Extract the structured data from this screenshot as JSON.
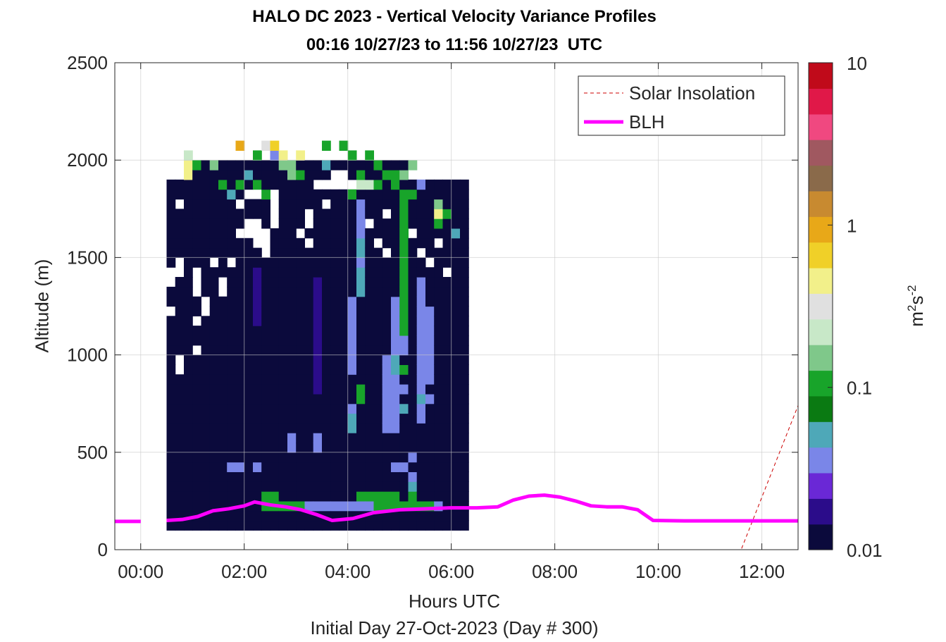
{
  "chart_data": {
    "type": "heatmap",
    "title": "HALO DC 2023 - Vertical Velocity Variance Profiles",
    "subtitle": "00:16 10/27/23 to 11:56 10/27/23  UTC",
    "xlabel": "Hours UTC",
    "footer": "Initial Day 27-Oct-2023 (Day # 300)",
    "ylabel": "Altitude (m)",
    "colorbar_label": "m2s-2",
    "colorbar_label_parts": {
      "base1": "m",
      "sup1": "2",
      "base2": "s",
      "sup2": "-2"
    },
    "colorbar_scale": "log",
    "colorbar_range": [
      0.01,
      10
    ],
    "colorbar_ticks": [
      "0.01",
      "0.1",
      "1",
      "10"
    ],
    "colorbar_colors": [
      "#0b0a3c",
      "#2b0c8a",
      "#6a28d6",
      "#7a86e8",
      "#4ea8b8",
      "#0a7a12",
      "#18a42a",
      "#7fc88a",
      "#c8e8c8",
      "#e0e0e0",
      "#f2f08a",
      "#f0d028",
      "#e8a818",
      "#c88a30",
      "#8a6a4a",
      "#a05860",
      "#f04880",
      "#e01848",
      "#c00a1a"
    ],
    "xlim": [
      -0.5,
      12.7
    ],
    "ylim": [
      0,
      2500
    ],
    "x_ticks": [
      0,
      2,
      4,
      6,
      8,
      10,
      12
    ],
    "x_tick_labels": [
      "00:00",
      "02:00",
      "04:00",
      "06:00",
      "08:00",
      "10:00",
      "12:00"
    ],
    "y_ticks": [
      0,
      500,
      1000,
      1500,
      2000,
      2500
    ],
    "y_tick_labels": [
      "0",
      "500",
      "1000",
      "1500",
      "2000",
      "2500"
    ],
    "grid": true,
    "legend_position": "top-right",
    "legend": [
      {
        "label": "Solar Insolation",
        "color": "#cc0000",
        "style": "dashed"
      },
      {
        "label": "BLH",
        "color": "#ff00ff",
        "style": "solid"
      }
    ],
    "heatmap": {
      "x_start": 0.5,
      "x_step": 0.1667,
      "n_cols": 35,
      "y_start": 100,
      "y_step": 50,
      "n_rows": 40,
      "value_units": "m2s-2",
      "background_value": 0.01,
      "cells": [
        [
          11,
          2,
          0.1
        ],
        [
          11,
          3,
          0.1
        ],
        [
          12,
          2,
          0.1
        ],
        [
          12,
          3,
          0.1
        ],
        [
          13,
          2,
          0.1
        ],
        [
          14,
          2,
          0.1
        ],
        [
          15,
          2,
          0.1
        ],
        [
          16,
          2,
          0.03
        ],
        [
          17,
          2,
          0.03
        ],
        [
          18,
          2,
          0.03
        ],
        [
          19,
          2,
          0.03
        ],
        [
          20,
          2,
          0.03
        ],
        [
          21,
          2,
          0.03
        ],
        [
          22,
          2,
          0.03
        ],
        [
          23,
          2,
          0.03
        ],
        [
          24,
          2,
          0.1
        ],
        [
          25,
          2,
          0.1
        ],
        [
          26,
          2,
          0.1
        ],
        [
          27,
          2,
          0.1
        ],
        [
          28,
          2,
          0.1
        ],
        [
          29,
          2,
          0.1
        ],
        [
          30,
          2,
          0.1
        ],
        [
          31,
          2,
          0.03
        ],
        [
          22,
          3,
          0.1
        ],
        [
          23,
          3,
          0.1
        ],
        [
          24,
          3,
          0.1
        ],
        [
          25,
          3,
          0.1
        ],
        [
          26,
          3,
          0.1
        ],
        [
          7,
          6,
          0.03
        ],
        [
          8,
          6,
          0.03
        ],
        [
          10,
          6,
          0.03
        ],
        [
          26,
          6,
          0.03
        ],
        [
          27,
          6,
          0.03
        ],
        [
          28,
          3,
          0.1
        ],
        [
          28,
          4,
          0.05
        ],
        [
          28,
          5,
          0.03
        ],
        [
          28,
          7,
          0.03
        ],
        [
          21,
          10,
          0.05
        ],
        [
          21,
          11,
          0.05
        ],
        [
          21,
          12,
          0.04
        ],
        [
          22,
          13,
          0.1
        ],
        [
          22,
          14,
          0.1
        ],
        [
          21,
          16,
          0.04
        ],
        [
          21,
          17,
          0.04
        ],
        [
          21,
          18,
          0.04
        ],
        [
          21,
          19,
          0.04
        ],
        [
          21,
          20,
          0.04
        ],
        [
          21,
          21,
          0.04
        ],
        [
          21,
          22,
          0.04
        ],
        [
          21,
          23,
          0.04
        ],
        [
          26,
          10,
          0.04
        ],
        [
          26,
          11,
          0.04
        ],
        [
          26,
          12,
          0.04
        ],
        [
          26,
          13,
          0.04
        ],
        [
          26,
          14,
          0.04
        ],
        [
          26,
          15,
          0.04
        ],
        [
          27,
          12,
          0.05
        ],
        [
          27,
          14,
          0.03
        ],
        [
          27,
          16,
          0.1
        ],
        [
          27,
          18,
          0.04
        ],
        [
          27,
          19,
          0.04
        ],
        [
          27,
          20,
          0.1
        ],
        [
          27,
          21,
          0.1
        ],
        [
          27,
          22,
          0.1
        ],
        [
          27,
          23,
          0.1
        ],
        [
          27,
          24,
          0.1
        ],
        [
          27,
          25,
          0.1
        ],
        [
          27,
          26,
          0.1
        ],
        [
          27,
          27,
          0.1
        ],
        [
          27,
          28,
          0.1
        ],
        [
          27,
          29,
          0.1
        ],
        [
          27,
          30,
          0.1
        ],
        [
          27,
          31,
          0.1
        ],
        [
          27,
          32,
          0.1
        ],
        [
          27,
          33,
          0.1
        ],
        [
          26,
          16,
          0.05
        ],
        [
          26,
          17,
          0.05
        ],
        [
          26,
          18,
          0.03
        ],
        [
          26,
          19,
          0.03
        ],
        [
          26,
          20,
          0.03
        ],
        [
          26,
          21,
          0.03
        ],
        [
          26,
          22,
          0.03
        ],
        [
          26,
          23,
          0.03
        ],
        [
          29,
          11,
          0.04
        ],
        [
          29,
          12,
          0.04
        ],
        [
          29,
          13,
          0.05
        ],
        [
          29,
          14,
          0.04
        ],
        [
          29,
          15,
          0.04
        ],
        [
          29,
          16,
          0.04
        ],
        [
          29,
          17,
          0.04
        ],
        [
          29,
          18,
          0.04
        ],
        [
          29,
          19,
          0.04
        ],
        [
          29,
          20,
          0.04
        ],
        [
          29,
          21,
          0.04
        ],
        [
          29,
          22,
          0.04
        ],
        [
          29,
          23,
          0.04
        ],
        [
          29,
          24,
          0.04
        ],
        [
          29,
          25,
          0.04
        ],
        [
          30,
          13,
          0.03
        ],
        [
          30,
          15,
          0.03
        ],
        [
          30,
          16,
          0.03
        ],
        [
          30,
          17,
          0.03
        ],
        [
          30,
          18,
          0.03
        ],
        [
          30,
          19,
          0.03
        ],
        [
          30,
          20,
          0.03
        ],
        [
          30,
          21,
          0.03
        ],
        [
          30,
          22,
          0.03
        ],
        [
          25,
          10,
          0.04
        ],
        [
          25,
          11,
          0.04
        ],
        [
          25,
          12,
          0.04
        ],
        [
          25,
          13,
          0.03
        ],
        [
          25,
          14,
          0.03
        ],
        [
          25,
          15,
          0.03
        ],
        [
          25,
          16,
          0.03
        ],
        [
          25,
          17,
          0.03
        ],
        [
          17,
          8,
          0.03
        ],
        [
          17,
          9,
          0.03
        ],
        [
          17,
          14,
          0.02
        ],
        [
          17,
          15,
          0.02
        ],
        [
          17,
          16,
          0.02
        ],
        [
          17,
          17,
          0.02
        ],
        [
          17,
          18,
          0.02
        ],
        [
          17,
          19,
          0.02
        ],
        [
          17,
          20,
          0.02
        ],
        [
          17,
          21,
          0.02
        ],
        [
          17,
          22,
          0.02
        ],
        [
          17,
          23,
          0.02
        ],
        [
          17,
          24,
          0.02
        ],
        [
          17,
          25,
          0.02
        ],
        [
          10,
          21,
          0.02
        ],
        [
          10,
          22,
          0.02
        ],
        [
          10,
          23,
          0.02
        ],
        [
          10,
          24,
          0.02
        ],
        [
          10,
          25,
          0.02
        ],
        [
          10,
          26,
          0.02
        ],
        [
          14,
          8,
          0.03
        ],
        [
          14,
          9,
          0.03
        ],
        [
          22,
          24,
          0.05
        ],
        [
          22,
          25,
          0.05
        ],
        [
          22,
          26,
          0.05
        ],
        [
          22,
          27,
          0.03
        ],
        [
          22,
          28,
          0.05
        ],
        [
          22,
          29,
          0.05
        ],
        [
          22,
          30,
          0.03
        ],
        [
          22,
          31,
          0.03
        ],
        [
          22,
          32,
          0.04
        ],
        [
          22,
          33,
          0.04
        ],
        [
          22,
          35,
          0.2
        ],
        [
          22,
          36,
          0.1
        ],
        [
          21,
          34,
          0.1
        ],
        [
          23,
          35,
          0.2
        ],
        [
          24,
          35,
          0.1
        ],
        [
          25,
          36,
          0.1
        ],
        [
          26,
          35,
          0.1
        ],
        [
          27,
          34,
          0.1
        ],
        [
          28,
          34,
          0.1
        ],
        [
          26,
          36,
          0.1
        ],
        [
          27,
          36,
          0.15
        ],
        [
          28,
          37,
          0.15
        ],
        [
          29,
          35,
          0.04
        ],
        [
          31,
          32,
          0.5
        ],
        [
          31,
          33,
          0.15
        ],
        [
          32,
          32,
          0.1
        ],
        [
          31,
          31,
          0.1
        ],
        [
          33,
          30,
          0.05
        ],
        [
          2,
          38,
          0.2
        ],
        [
          2,
          37,
          0.4
        ],
        [
          2,
          36,
          0.5
        ],
        [
          3,
          37,
          0.1
        ],
        [
          5,
          37,
          0.15
        ],
        [
          6,
          35,
          0.1
        ],
        [
          7,
          34,
          0.05
        ],
        [
          8,
          35,
          0.1
        ],
        [
          9,
          36,
          0.05
        ],
        [
          10,
          35,
          0.1
        ],
        [
          11,
          34,
          0.1
        ],
        [
          8,
          39,
          0.8
        ],
        [
          10,
          38,
          0.1
        ],
        [
          12,
          38,
          0.04
        ],
        [
          12,
          39,
          0.6
        ],
        [
          13,
          38,
          0.5
        ],
        [
          13,
          37,
          0.15
        ],
        [
          14,
          37,
          0.15
        ],
        [
          14,
          36,
          0.15
        ],
        [
          15,
          36,
          0.1
        ],
        [
          15,
          38,
          0.03
        ],
        [
          18,
          37,
          0.05
        ],
        [
          18,
          39,
          0.1
        ],
        [
          20,
          39,
          0.1
        ],
        [
          21,
          38,
          0.1
        ],
        [
          23,
          38,
          0.1
        ],
        [
          24,
          37,
          0.1
        ],
        [
          15,
          38,
          0.5
        ],
        [
          11,
          39,
          0.3
        ]
      ]
    },
    "blh_series": {
      "name": "BLH",
      "x": [
        -0.5,
        0.5,
        0.8,
        1.1,
        1.4,
        1.7,
        2.0,
        2.2,
        2.5,
        2.8,
        3.1,
        3.4,
        3.7,
        4.1,
        4.5,
        5.0,
        5.5,
        6.0,
        6.5,
        6.9,
        7.2,
        7.5,
        7.8,
        8.1,
        8.4,
        8.7,
        9.0,
        9.3,
        9.6,
        9.9,
        10.5,
        11.0,
        11.6,
        12.7
      ],
      "y": [
        145,
        150,
        155,
        170,
        200,
        210,
        225,
        245,
        230,
        220,
        205,
        180,
        150,
        160,
        190,
        205,
        210,
        215,
        215,
        220,
        255,
        275,
        280,
        270,
        250,
        225,
        220,
        220,
        205,
        150,
        148,
        148,
        148,
        148
      ]
    },
    "solar_series": {
      "name": "Solar Insolation",
      "x": [
        -0.5,
        11.6,
        12.7
      ],
      "y": [
        0,
        0,
        740
      ]
    }
  }
}
